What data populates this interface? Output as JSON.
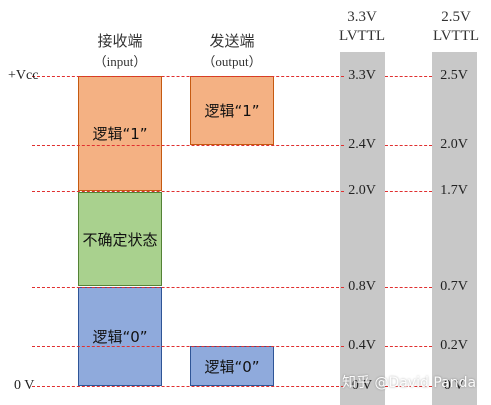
{
  "headers": {
    "receiver": "接收端",
    "receiver_sub": "（input）",
    "sender": "发送端",
    "sender_sub": "（output）",
    "std33_line1": "3.3V",
    "std33_line2": "LVTTL",
    "std25_line1": "2.5V",
    "std25_line2": "LVTTL"
  },
  "rails": {
    "vcc": "+Vcc",
    "gnd": "0 V"
  },
  "boxes": {
    "rx_logic1": "逻辑“1”",
    "rx_undefined": "不确定状态",
    "rx_logic0": "逻辑“0”",
    "tx_logic1": "逻辑“1”",
    "tx_logic0": "逻辑“0”"
  },
  "levels_33": [
    "3.3V",
    "2.4V",
    "2.0V",
    "0.8V",
    "0.4V",
    "0 V"
  ],
  "levels_25": [
    "2.5V",
    "2.0V",
    "1.7V",
    "0.7V",
    "0.2V",
    "0 V"
  ],
  "watermark": "知乎 @David Panda",
  "colors": {
    "logic1": "#f4b183",
    "undefined": "#a9d18e",
    "logic0": "#8faadc",
    "threshold_line": "#e03030",
    "voltage_column": "#c8c8c8"
  }
}
